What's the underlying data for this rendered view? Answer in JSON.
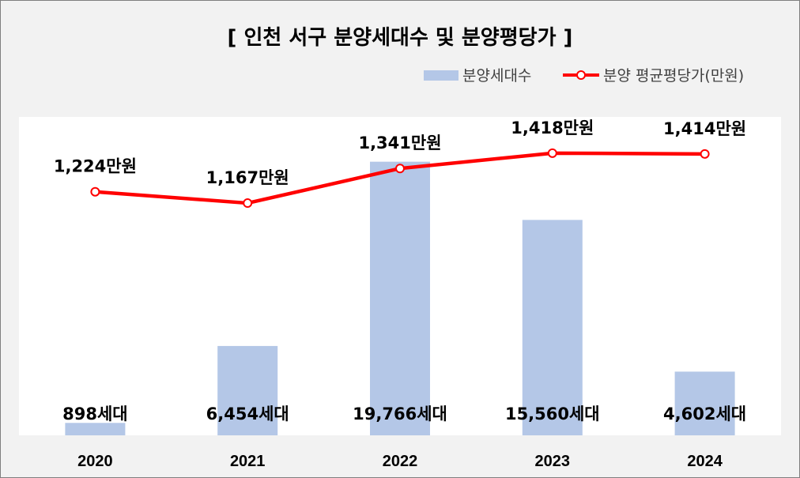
{
  "chart_data": {
    "type": "bar+line",
    "title": "[ 인천 서구 분양세대수 및 분양평당가 ]",
    "categories": [
      "2020",
      "2021",
      "2022",
      "2023",
      "2024"
    ],
    "series": [
      {
        "name": "분양세대수",
        "type": "bar",
        "axis": "left",
        "values": [
          898,
          6454,
          19766,
          15560,
          4602
        ],
        "labels": [
          "898세대",
          "6,454세대",
          "19,766세대",
          "15,560세대",
          "4,602세대"
        ],
        "color": "#b4c7e7"
      },
      {
        "name": "분양 평균평당가(만원)",
        "type": "line",
        "axis": "right",
        "values": [
          1224,
          1167,
          1341,
          1418,
          1414
        ],
        "labels": [
          "1,224만원",
          "1,167만원",
          "1,341만원",
          "1,418만원",
          "1,414만원"
        ],
        "color": "#ff0000"
      }
    ],
    "y_left_range": [
      0,
      23000
    ],
    "y_right_range": [
      0,
      1600
    ],
    "legend_position": "top-right",
    "grid": false
  }
}
